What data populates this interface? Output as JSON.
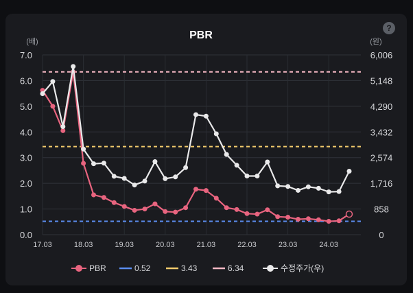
{
  "chart_data": {
    "type": "line",
    "title": "PBR",
    "y_left_unit": "(배)",
    "y_right_unit": "(원)",
    "y_left_ticks": [
      "7.0",
      "6.0",
      "5.0",
      "4.0",
      "3.0",
      "2.0",
      "1.0",
      "0.0"
    ],
    "y_right_ticks": [
      "6,006",
      "5,148",
      "4,290",
      "3,432",
      "2,574",
      "1,716",
      "858",
      "0"
    ],
    "ylim_left": [
      0,
      7
    ],
    "ylim_right": [
      0,
      6006
    ],
    "x_ticks": [
      "17.03",
      "18.03",
      "19.03",
      "20.03",
      "21.03",
      "22.03",
      "23.03",
      "24.03"
    ],
    "grid": true,
    "legend_position": "bottom",
    "series": [
      {
        "name": "PBR",
        "axis": "left",
        "color": "#e8647f",
        "x": [
          2017.0,
          2017.25,
          2017.5,
          2017.75,
          2018.0,
          2018.25,
          2018.5,
          2018.75,
          2019.0,
          2019.25,
          2019.5,
          2019.75,
          2020.0,
          2020.25,
          2020.5,
          2020.75,
          2021.0,
          2021.25,
          2021.5,
          2021.75,
          2022.0,
          2022.25,
          2022.5,
          2022.75,
          2023.0,
          2023.25,
          2023.5,
          2023.75,
          2024.0,
          2024.25,
          2024.5
        ],
        "values": [
          5.62,
          5.0,
          4.05,
          6.34,
          2.78,
          1.55,
          1.45,
          1.25,
          1.1,
          0.95,
          1.0,
          1.2,
          0.9,
          0.88,
          1.05,
          1.77,
          1.72,
          1.42,
          1.05,
          0.98,
          0.82,
          0.8,
          0.97,
          0.7,
          0.68,
          0.6,
          0.62,
          0.58,
          0.52,
          0.54,
          0.8
        ]
      },
      {
        "name": "0.52",
        "axis": "left",
        "color": "#5b8def",
        "dashed": true,
        "value": 0.52
      },
      {
        "name": "3.43",
        "axis": "left",
        "color": "#f2cb6c",
        "dashed": true,
        "value": 3.43
      },
      {
        "name": "6.34",
        "axis": "left",
        "color": "#f5b7c3",
        "dashed": true,
        "value": 6.34
      },
      {
        "name": "수정주가(우)",
        "axis": "right",
        "color": "#e9e9ea",
        "x": [
          2017.0,
          2017.25,
          2017.5,
          2017.75,
          2018.0,
          2018.25,
          2018.5,
          2018.75,
          2019.0,
          2019.25,
          2019.5,
          2019.75,
          2020.0,
          2020.25,
          2020.5,
          2020.75,
          2021.0,
          2021.25,
          2021.5,
          2021.75,
          2022.0,
          2022.25,
          2022.5,
          2022.75,
          2023.0,
          2023.25,
          2023.5,
          2023.75,
          2024.0,
          2024.25,
          2024.5
        ],
        "values": [
          4710,
          5117,
          3610,
          5620,
          2860,
          2370,
          2390,
          1950,
          1880,
          1660,
          1790,
          2440,
          1870,
          1930,
          2240,
          4010,
          3960,
          3370,
          2680,
          2320,
          1960,
          1960,
          2430,
          1630,
          1610,
          1480,
          1600,
          1550,
          1430,
          1440,
          2120
        ]
      }
    ]
  }
}
